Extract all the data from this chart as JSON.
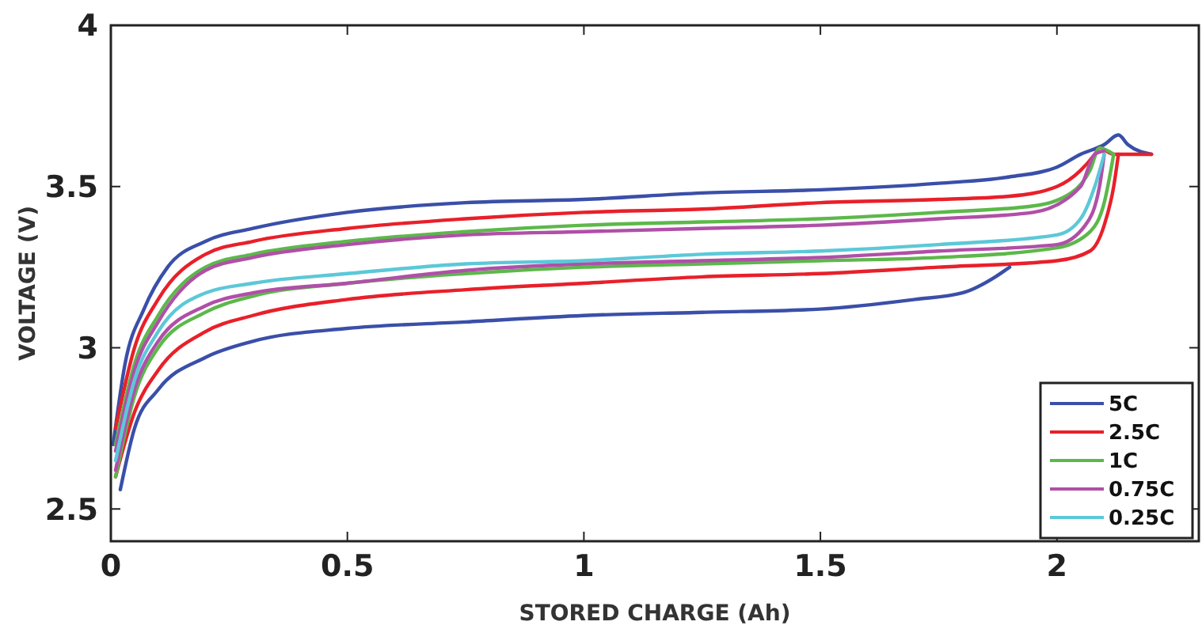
{
  "chart_data": {
    "type": "line",
    "xlabel": "STORED CHARGE  (Ah)",
    "ylabel": "VOLTAGE  (V)",
    "xlim": [
      0,
      2.3
    ],
    "ylim": [
      2.4,
      4
    ],
    "xticks": [
      0,
      0.5,
      1,
      1.5,
      2
    ],
    "yticks": [
      2.5,
      3,
      3.5,
      4
    ],
    "grid": false,
    "legend": "bottom right",
    "marker": "none",
    "line_style": "solid",
    "series": [
      {
        "name": "5C",
        "color": "#3a4fa8",
        "x": [
          0.005,
          0.03,
          0.07,
          0.12,
          0.2,
          0.3,
          0.5,
          0.75,
          1.0,
          1.25,
          1.5,
          1.75,
          1.9,
          2.0,
          2.05,
          2.1,
          2.13,
          2.15,
          2.2
        ],
        "values": [
          2.7,
          2.95,
          3.12,
          3.25,
          3.33,
          3.37,
          3.42,
          3.45,
          3.46,
          3.48,
          3.49,
          3.51,
          3.53,
          3.56,
          3.6,
          3.63,
          3.66,
          3.63,
          3.6
        ]
      },
      {
        "color": "#3a4fa8",
        "x": [
          0.02,
          0.05,
          0.1,
          0.2,
          0.3,
          0.5,
          0.75,
          1.0,
          1.25,
          1.5,
          1.7,
          1.8,
          1.87,
          1.9
        ],
        "values": [
          2.56,
          2.75,
          2.87,
          2.97,
          3.02,
          3.06,
          3.08,
          3.1,
          3.11,
          3.12,
          3.15,
          3.17,
          3.22,
          3.25
        ]
      },
      {
        "name": "2.5C",
        "color": "#e8202a",
        "x": [
          0.01,
          0.05,
          0.1,
          0.2,
          0.3,
          0.5,
          0.75,
          1.0,
          1.25,
          1.5,
          1.75,
          1.9,
          2.0,
          2.05,
          2.08,
          2.09,
          2.12,
          2.2
        ],
        "values": [
          2.75,
          3.0,
          3.15,
          3.29,
          3.33,
          3.37,
          3.4,
          3.42,
          3.43,
          3.45,
          3.46,
          3.47,
          3.5,
          3.55,
          3.6,
          3.62,
          3.6,
          3.6
        ]
      },
      {
        "color": "#e8202a",
        "x": [
          0.01,
          0.05,
          0.1,
          0.2,
          0.3,
          0.5,
          0.75,
          1.0,
          1.25,
          1.5,
          1.75,
          2.0,
          2.07,
          2.1,
          2.12,
          2.13
        ],
        "values": [
          2.6,
          2.8,
          2.93,
          3.05,
          3.1,
          3.15,
          3.18,
          3.2,
          3.22,
          3.23,
          3.25,
          3.27,
          3.3,
          3.38,
          3.5,
          3.6
        ]
      },
      {
        "name": "1C",
        "color": "#5cb84a",
        "x": [
          0.01,
          0.05,
          0.1,
          0.2,
          0.3,
          0.5,
          0.75,
          1.0,
          1.25,
          1.5,
          1.75,
          1.95,
          2.03,
          2.07,
          2.09,
          2.12
        ],
        "values": [
          2.7,
          2.95,
          3.1,
          3.25,
          3.29,
          3.33,
          3.36,
          3.38,
          3.39,
          3.4,
          3.42,
          3.44,
          3.48,
          3.55,
          3.62,
          3.6
        ]
      },
      {
        "color": "#5cb84a",
        "x": [
          0.01,
          0.05,
          0.1,
          0.2,
          0.3,
          0.5,
          0.75,
          1.0,
          1.25,
          1.5,
          1.75,
          2.0,
          2.07,
          2.1,
          2.12
        ],
        "values": [
          2.6,
          2.85,
          3.0,
          3.11,
          3.16,
          3.2,
          3.23,
          3.25,
          3.26,
          3.27,
          3.28,
          3.31,
          3.36,
          3.45,
          3.6
        ]
      },
      {
        "name": "0.75C",
        "color": "#b04fa8",
        "x": [
          0.01,
          0.05,
          0.1,
          0.2,
          0.3,
          0.5,
          0.75,
          1.0,
          1.25,
          1.5,
          1.75,
          1.95,
          2.05,
          2.08,
          2.1
        ],
        "values": [
          2.68,
          2.93,
          3.08,
          3.24,
          3.28,
          3.32,
          3.35,
          3.36,
          3.37,
          3.38,
          3.4,
          3.42,
          3.5,
          3.6,
          3.61
        ]
      },
      {
        "color": "#b04fa8",
        "x": [
          0.01,
          0.05,
          0.1,
          0.2,
          0.3,
          0.5,
          0.75,
          1.0,
          1.25,
          1.5,
          1.75,
          2.0,
          2.06,
          2.09,
          2.1
        ],
        "values": [
          2.62,
          2.87,
          3.02,
          3.13,
          3.17,
          3.2,
          3.24,
          3.26,
          3.27,
          3.28,
          3.3,
          3.32,
          3.38,
          3.5,
          3.6
        ]
      },
      {
        "name": "0.25C",
        "color": "#5cc8d8",
        "x": [
          0.01,
          0.05,
          0.1,
          0.2,
          0.3,
          0.5,
          0.75,
          1.0,
          1.25,
          1.5,
          1.75,
          2.0,
          2.05,
          2.08,
          2.1
        ],
        "values": [
          2.65,
          2.9,
          3.05,
          3.17,
          3.2,
          3.23,
          3.26,
          3.27,
          3.29,
          3.3,
          3.32,
          3.35,
          3.4,
          3.5,
          3.6
        ]
      }
    ]
  }
}
